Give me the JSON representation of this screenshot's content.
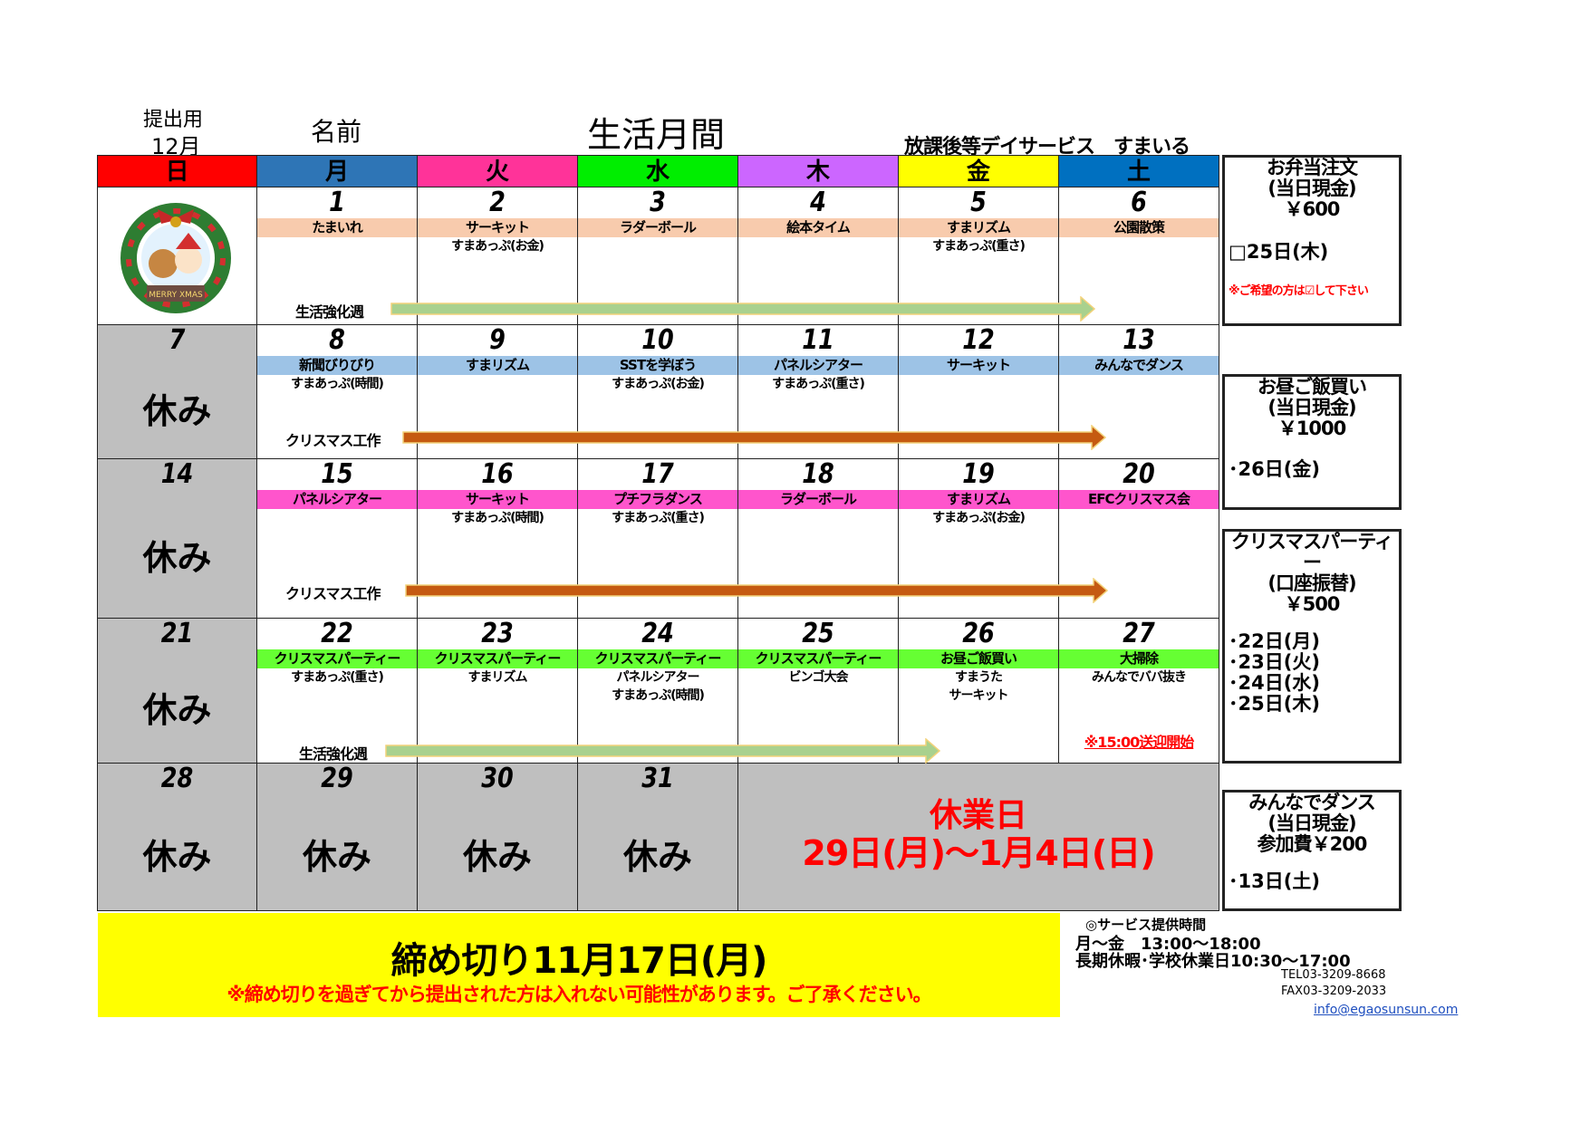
{
  "header": {
    "submit_label": "提出用",
    "month": "12月",
    "name_label": "名前",
    "title": "生活月間",
    "org": "放課後等デイサービス　すまいる"
  },
  "weekdays": [
    {
      "label": "日",
      "color": "#ff0000"
    },
    {
      "label": "月",
      "color": "#2e75b6"
    },
    {
      "label": "火",
      "color": "#ff3399"
    },
    {
      "label": "水",
      "color": "#00ee00"
    },
    {
      "label": "木",
      "color": "#cc66ff"
    },
    {
      "label": "金",
      "color": "#ffff00"
    },
    {
      "label": "土",
      "color": "#0070c0"
    }
  ],
  "rest_label": "休み",
  "weeks": [
    {
      "band_color": "#f8cbad",
      "days": [
        {
          "num": "",
          "image": "merry-christmas-wreath"
        },
        {
          "num": "1",
          "event": "たまいれ",
          "sub": []
        },
        {
          "num": "2",
          "event": "サーキット",
          "sub": [
            "すまあっぷ(お金)"
          ]
        },
        {
          "num": "3",
          "event": "ラダーボール",
          "sub": []
        },
        {
          "num": "4",
          "event": "絵本タイム",
          "sub": []
        },
        {
          "num": "5",
          "event": "すまリズム",
          "sub": [
            "すまあっぷ(重さ)"
          ]
        },
        {
          "num": "6",
          "event": "公園散策",
          "sub": []
        }
      ],
      "arrow": {
        "label": "生活強化週",
        "color": "#a9d18e"
      }
    },
    {
      "band_color": "#9dc3e6",
      "days": [
        {
          "num": "7",
          "rest": true
        },
        {
          "num": "8",
          "event": "新聞びりびり",
          "sub": [
            "すまあっぷ(時間)"
          ]
        },
        {
          "num": "9",
          "event": "すまリズム",
          "sub": []
        },
        {
          "num": "10",
          "event": "SSTを学ぼう",
          "sub": [
            "すまあっぷ(お金)"
          ]
        },
        {
          "num": "11",
          "event": "パネルシアター",
          "sub": [
            "すまあっぷ(重さ)"
          ]
        },
        {
          "num": "12",
          "event": "サーキット",
          "sub": []
        },
        {
          "num": "13",
          "event": "みんなでダンス",
          "sub": []
        }
      ],
      "arrow": {
        "label": "クリスマス工作",
        "color": "#c55a11"
      }
    },
    {
      "band_color": "#ff55cc",
      "days": [
        {
          "num": "14",
          "rest": true
        },
        {
          "num": "15",
          "event": "パネルシアター",
          "sub": []
        },
        {
          "num": "16",
          "event": "サーキット",
          "sub": [
            "すまあっぷ(時間)"
          ]
        },
        {
          "num": "17",
          "event": "プチフラダンス",
          "sub": [
            "すまあっぷ(重さ)"
          ]
        },
        {
          "num": "18",
          "event": "ラダーボール",
          "sub": []
        },
        {
          "num": "19",
          "event": "すまリズム",
          "sub": [
            "すまあっぷ(お金)"
          ]
        },
        {
          "num": "20",
          "event": "EFCクリスマス会",
          "sub": []
        }
      ],
      "arrow": {
        "label": "クリスマス工作",
        "color": "#c55a11"
      }
    },
    {
      "band_color": "#66ff33",
      "days": [
        {
          "num": "21",
          "rest": true
        },
        {
          "num": "22",
          "event": "クリスマスパーティー",
          "sub": [
            "すまあっぷ(重さ)"
          ]
        },
        {
          "num": "23",
          "event": "クリスマスパーティー",
          "sub": [
            "すまリズム"
          ]
        },
        {
          "num": "24",
          "event": "クリスマスパーティー",
          "sub": [
            "パネルシアター",
            "すまあっぷ(時間)"
          ]
        },
        {
          "num": "25",
          "event": "クリスマスパーティー",
          "sub": [
            "ビンゴ大会"
          ]
        },
        {
          "num": "26",
          "event": "お昼ご飯買い",
          "sub": [
            "すまうた",
            "サーキット"
          ]
        },
        {
          "num": "27",
          "event": "大掃除",
          "sub": [
            "みんなでババ抜き"
          ],
          "note": "※15:00送迎開始"
        }
      ],
      "arrow": {
        "label": "生活強化週",
        "color": "#a9d18e"
      }
    },
    {
      "days": [
        {
          "num": "28",
          "rest": true
        },
        {
          "num": "29",
          "rest": true
        },
        {
          "num": "30",
          "rest": true
        },
        {
          "num": "31",
          "rest": true
        }
      ],
      "closure": {
        "title": "休業日",
        "range": "29日(月)～1月4日(日)",
        "color": "#ff0000"
      }
    }
  ],
  "side": [
    {
      "title": [
        "お弁当注文",
        "(当日現金)",
        "￥600"
      ],
      "items": [
        "□25日(木)"
      ],
      "note": "※ご希望の方は☑して下さい"
    },
    {
      "title": [
        "お昼ご飯買い",
        "(当日現金)",
        "￥1000"
      ],
      "items": [
        "･26日(金)"
      ]
    },
    {
      "title": [
        "クリスマスパーティー",
        "(口座振替)",
        "￥500"
      ],
      "items": [
        "･22日(月)",
        "･23日(火)",
        "･24日(水)",
        "･25日(木)"
      ]
    },
    {
      "title": [
        "みんなでダンス",
        "(当日現金)",
        "参加費￥200"
      ],
      "items": [
        "･13日(土)"
      ]
    }
  ],
  "deadline": {
    "title": "締め切り11月17日(月)",
    "note": "※締め切りを過ぎてから提出された方は入れない可能性があります。ご了承ください。",
    "bg": "#ffff00"
  },
  "contact": {
    "hours_title": "◎サービス提供時間",
    "weekday": "月～金　13:00～18:00",
    "holiday": "長期休暇･学校休業日10:30～17:00",
    "tel": "TEL03-3209-8668",
    "fax": "FAX03-3209-2033",
    "email": "info@egaosunsun.com"
  }
}
